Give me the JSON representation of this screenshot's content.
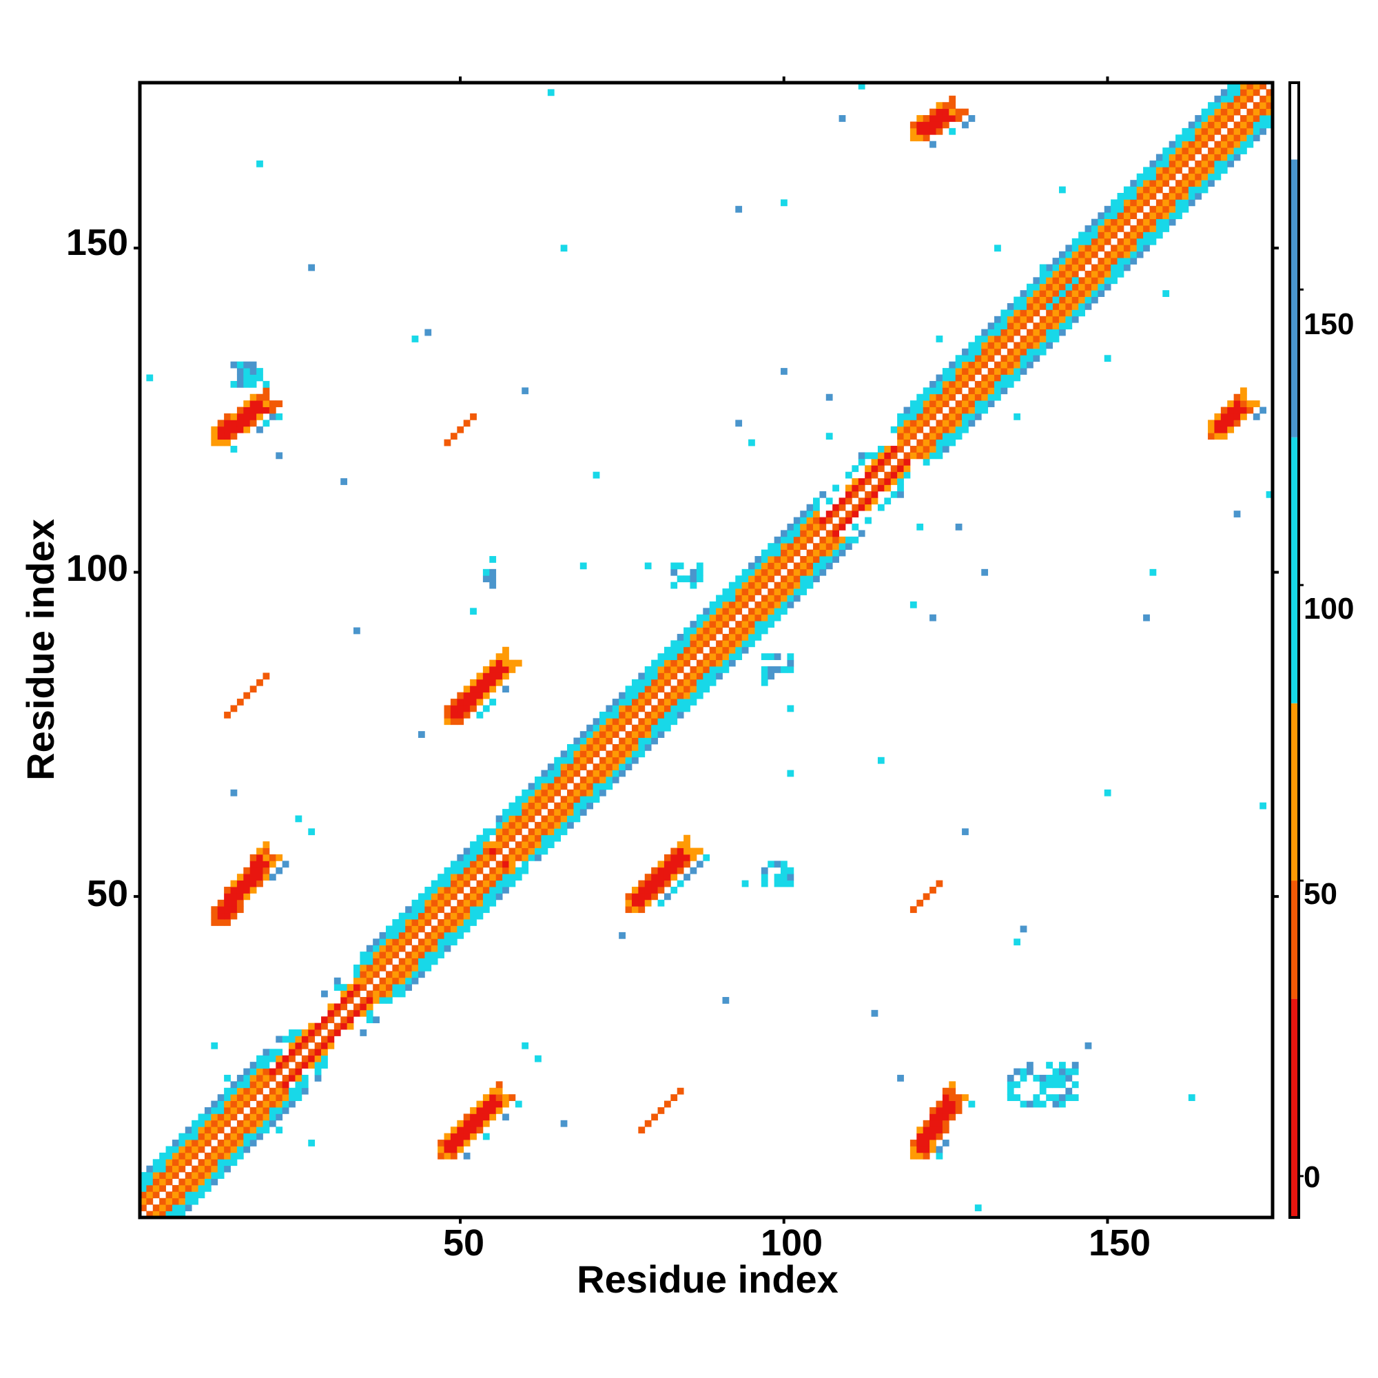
{
  "chart_data": {
    "type": "heatmap",
    "title": "",
    "xlabel": "Residue index",
    "ylabel": "Residue index",
    "xlim": [
      1,
      175
    ],
    "ylim": [
      1,
      175
    ],
    "x_ticks": [
      "50",
      "100",
      "150"
    ],
    "y_ticks": [
      "50",
      "100",
      "150"
    ],
    "x_tick_values": [
      50,
      100,
      150
    ],
    "y_tick_values": [
      50,
      100,
      150
    ],
    "symmetric": true,
    "colorbar": {
      "min": -7,
      "max": 185,
      "ticks": [
        "0",
        "50",
        "100",
        "150"
      ],
      "tick_values": [
        0,
        50,
        100,
        150
      ],
      "bands": [
        {
          "from": -7,
          "to": 30,
          "color": "#e8160f"
        },
        {
          "from": 30,
          "to": 50,
          "color": "#f25a06"
        },
        {
          "from": 50,
          "to": 80,
          "color": "#ff9a05"
        },
        {
          "from": 80,
          "to": 125,
          "color": "#18d8e8"
        },
        {
          "from": 125,
          "to": 172,
          "color": "#4a95cc"
        },
        {
          "from": 172,
          "to": 185,
          "color": "#ffffff"
        }
      ]
    },
    "colors": {
      "red": "#e8160f",
      "orange_red": "#f25a06",
      "orange": "#ff9a05",
      "cyan": "#18d8e8",
      "blue": "#4a95cc"
    },
    "diagonal_helices": [
      [
        1,
        20
      ],
      [
        35,
        45
      ],
      [
        45,
        54
      ],
      [
        56,
        63
      ],
      [
        63,
        76
      ],
      [
        76,
        83
      ],
      [
        83,
        100
      ],
      [
        100,
        105
      ],
      [
        118,
        125
      ],
      [
        125,
        133
      ],
      [
        133,
        145
      ],
      [
        145,
        152
      ],
      [
        152,
        175
      ]
    ],
    "diagonal_strands": [
      [
        20,
        35
      ],
      [
        105,
        118
      ]
    ],
    "contact_patches": [
      {
        "x0": 12,
        "y0": 46,
        "x1": 20,
        "y1": 56,
        "thickness": 3,
        "value": 5
      },
      {
        "x0": 47,
        "y0": 10,
        "x1": 56,
        "y1": 19,
        "thickness": 3,
        "value": 5
      },
      {
        "x0": 12,
        "y0": 120,
        "x1": 20,
        "y1": 126,
        "thickness": 3,
        "value": 5
      },
      {
        "x0": 120,
        "y0": 10,
        "x1": 126,
        "y1": 19,
        "thickness": 3,
        "value": 5
      },
      {
        "x0": 48,
        "y0": 77,
        "x1": 57,
        "y1": 86,
        "thickness": 3,
        "value": 5
      },
      {
        "x0": 76,
        "y0": 48,
        "x1": 85,
        "y1": 57,
        "thickness": 3,
        "value": 5
      },
      {
        "x0": 120,
        "y0": 167,
        "x1": 126,
        "y1": 171,
        "thickness": 3,
        "value": 5
      },
      {
        "x0": 166,
        "y0": 121,
        "x1": 171,
        "y1": 126,
        "thickness": 3,
        "value": 5
      },
      {
        "x0": 48,
        "y0": 120,
        "x1": 52,
        "y1": 124,
        "thickness": 1,
        "value": 40
      },
      {
        "x0": 14,
        "y0": 78,
        "x1": 20,
        "y1": 84,
        "thickness": 1,
        "value": 40
      },
      {
        "x0": 78,
        "y0": 14,
        "x1": 84,
        "y1": 20,
        "thickness": 1,
        "value": 40
      },
      {
        "x0": 120,
        "y0": 48,
        "x1": 124,
        "y1": 52,
        "thickness": 1,
        "value": 40
      }
    ],
    "cyan_clusters": [
      [
        53,
        98,
        55,
        102
      ],
      [
        83,
        98,
        87,
        101
      ],
      [
        97,
        83,
        101,
        87
      ],
      [
        97,
        52,
        101,
        55
      ],
      [
        15,
        129,
        20,
        132
      ],
      [
        141,
        140,
        147,
        145
      ],
      [
        140,
        141,
        145,
        147
      ],
      [
        135,
        18,
        145,
        24
      ]
    ]
  }
}
